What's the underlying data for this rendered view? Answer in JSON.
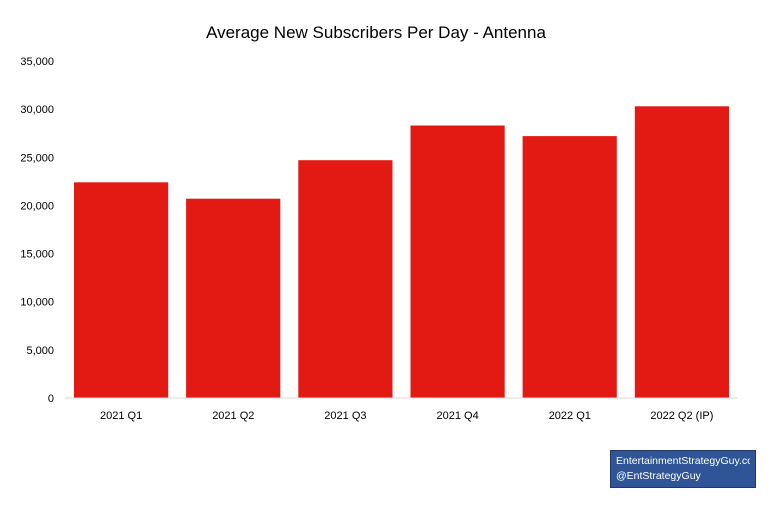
{
  "chart_data": {
    "type": "bar",
    "title": "Average New Subscribers Per Day - Antenna",
    "xlabel": "",
    "ylabel": "",
    "categories": [
      "2021 Q1",
      "2021 Q2",
      "2021 Q3",
      "2021 Q4",
      "2022 Q1",
      "2022 Q2 (IP)"
    ],
    "values": [
      22400,
      20700,
      24700,
      28300,
      27200,
      30300
    ],
    "ylim": [
      0,
      35000
    ],
    "yticks": [
      0,
      5000,
      10000,
      15000,
      20000,
      25000,
      30000,
      35000
    ],
    "ytick_labels": [
      "0",
      "5,000",
      "10,000",
      "15,000",
      "20,000",
      "25,000",
      "30,000",
      "35,000"
    ],
    "bar_color": "#e31a13",
    "grid": false,
    "legend": "none"
  },
  "watermark": {
    "line1": "EntertainmentStrategyGuy.com",
    "line2": "@EntStrategyGuy",
    "background": "#2f5597"
  }
}
